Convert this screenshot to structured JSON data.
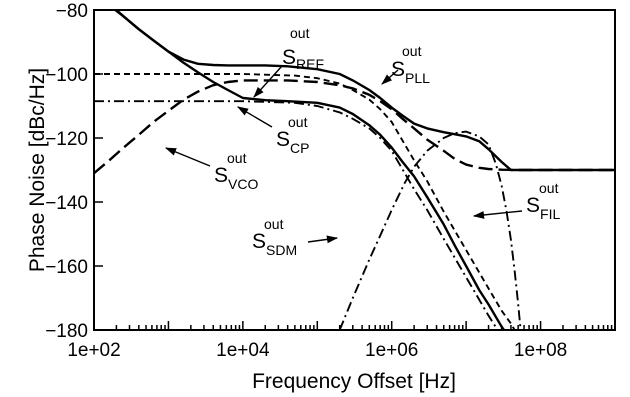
{
  "chart_data": {
    "type": "line",
    "title": "",
    "xlabel": "Frequency Offset [Hz]",
    "ylabel": "Phase Noise [dBc/Hz]",
    "x_scale": "log",
    "xlim": [
      100,
      1000000000
    ],
    "ylim": [
      -180,
      -80
    ],
    "x_ticks": [
      {
        "value": 100,
        "label": "1e+02"
      },
      {
        "value": 10000,
        "label": "1e+04"
      },
      {
        "value": 1000000,
        "label": "1e+06"
      },
      {
        "value": 100000000,
        "label": "1e+08"
      }
    ],
    "y_ticks": [
      {
        "value": -80,
        "label": "−80"
      },
      {
        "value": -100,
        "label": "−100"
      },
      {
        "value": -120,
        "label": "−120"
      },
      {
        "value": -140,
        "label": "−140"
      },
      {
        "value": -160,
        "label": "−160"
      },
      {
        "value": -180,
        "label": "−180"
      }
    ],
    "grid": false,
    "series": [
      {
        "key": "pll",
        "dash": "solid",
        "stroke_width": 2.4,
        "x": [
          100,
          160,
          250,
          400,
          630,
          1000,
          1600,
          2500,
          4000,
          6300,
          10000,
          20000,
          40000,
          100000,
          200000,
          300000,
          500000,
          700000,
          1000000,
          1400000,
          2000000,
          3000000,
          5000000,
          7000000,
          10000000,
          15000000,
          20000000,
          30000000,
          40000000,
          1000000000
        ],
        "y": [
          -74,
          -78,
          -82,
          -86,
          -89.5,
          -93,
          -95.5,
          -96.8,
          -97.2,
          -97.3,
          -97.3,
          -97.3,
          -97.6,
          -98.5,
          -100,
          -102,
          -105,
          -107.5,
          -110.5,
          -113,
          -115.5,
          -117,
          -118.2,
          -118.8,
          -119.5,
          -121,
          -123.5,
          -127.5,
          -130,
          -130
        ]
      },
      {
        "key": "ref",
        "dash": "dash",
        "stroke_width": 1.9,
        "x": [
          100,
          1000,
          10000,
          50000,
          100000,
          200000,
          300000,
          500000,
          700000,
          1000000,
          2000000,
          3000000,
          5000000,
          10000000,
          20000000,
          30000000,
          40000000,
          50000000
        ],
        "y": [
          -100,
          -100,
          -100,
          -100.5,
          -101.3,
          -103,
          -105,
          -108,
          -111,
          -115,
          -127,
          -133.5,
          -143,
          -155,
          -167,
          -174,
          -178,
          -182
        ]
      },
      {
        "key": "cp",
        "dash": "dashdot",
        "stroke_width": 1.9,
        "x": [
          100,
          1000,
          10000,
          50000,
          100000,
          200000,
          300000,
          500000,
          700000,
          1000000,
          2000000,
          3000000,
          5000000,
          10000000,
          20000000,
          30000000,
          40000000
        ],
        "y": [
          -108.5,
          -108.5,
          -108.5,
          -109,
          -110,
          -112,
          -114,
          -117,
          -120,
          -124,
          -136,
          -142.5,
          -151.5,
          -163.5,
          -175.5,
          -182,
          -186
        ]
      },
      {
        "key": "vco",
        "dash": "longdash",
        "stroke_width": 2.4,
        "x": [
          100,
          160,
          250,
          400,
          630,
          1000,
          1600,
          2500,
          4000,
          6300,
          10000,
          20000,
          40000,
          100000,
          200000,
          300000,
          500000,
          700000,
          1000000,
          1400000,
          2000000,
          3000000,
          5000000,
          7000000,
          10000000,
          15000000,
          20000000,
          30000000,
          50000000,
          100000000,
          1000000000
        ],
        "y": [
          -131,
          -127,
          -123,
          -119,
          -115,
          -111.5,
          -108,
          -105.5,
          -103.5,
          -102.5,
          -102,
          -102,
          -102,
          -102.5,
          -103.5,
          -104.5,
          -106.5,
          -108.5,
          -111,
          -114,
          -117,
          -120.5,
          -124,
          -126.5,
          -128.3,
          -129.3,
          -129.7,
          -129.9,
          -130,
          -130,
          -130
        ]
      },
      {
        "key": "pll_left",
        "dash": "solid",
        "stroke_width": 2.4,
        "x": [
          100,
          160,
          250,
          400,
          630,
          1000,
          1600,
          2500,
          4000,
          6300,
          10000,
          20000,
          40000,
          100000,
          200000,
          300000,
          500000,
          700000,
          1000000,
          1400000,
          2000000,
          3000000,
          5000000,
          7000000,
          10000000,
          15000000,
          20000000,
          30000000,
          40000000
        ],
        "y": [
          -75,
          -78.5,
          -82,
          -86,
          -89.5,
          -93,
          -96.5,
          -99.5,
          -102.5,
          -105,
          -107.5,
          -108.2,
          -108.5,
          -109,
          -110.5,
          -112.5,
          -116,
          -119,
          -123,
          -127.5,
          -132,
          -138.5,
          -147,
          -153.5,
          -160,
          -167.5,
          -172,
          -179,
          -183
        ]
      },
      {
        "key": "sdm",
        "dash": "dashdot",
        "stroke_width": 1.9,
        "x": [
          200000,
          300000,
          500000,
          700000,
          1000000,
          1500000,
          2000000,
          3000000,
          5000000,
          7000000,
          10000000,
          15000000,
          20000000,
          25000000,
          30000000,
          35000000,
          40000000,
          45000000,
          50000000,
          55000000
        ],
        "y": [
          -180,
          -170,
          -158,
          -150.5,
          -142.5,
          -134,
          -129,
          -124,
          -120,
          -118.5,
          -118,
          -119.5,
          -122,
          -128,
          -135,
          -143,
          -152,
          -162,
          -172,
          -182
        ]
      }
    ],
    "annotations": [
      {
        "key": "ref",
        "base": "S",
        "sub": "REF",
        "sup": "out"
      },
      {
        "key": "pll",
        "base": "S",
        "sub": "PLL",
        "sup": "out"
      },
      {
        "key": "cp",
        "base": "S",
        "sub": "CP",
        "sup": "out"
      },
      {
        "key": "vco",
        "base": "S",
        "sub": "VCO",
        "sup": "out"
      },
      {
        "key": "fil",
        "base": "S",
        "sub": "FIL",
        "sup": "out"
      },
      {
        "key": "sdm",
        "base": "S",
        "sub": "SDM",
        "sup": "out"
      }
    ]
  }
}
